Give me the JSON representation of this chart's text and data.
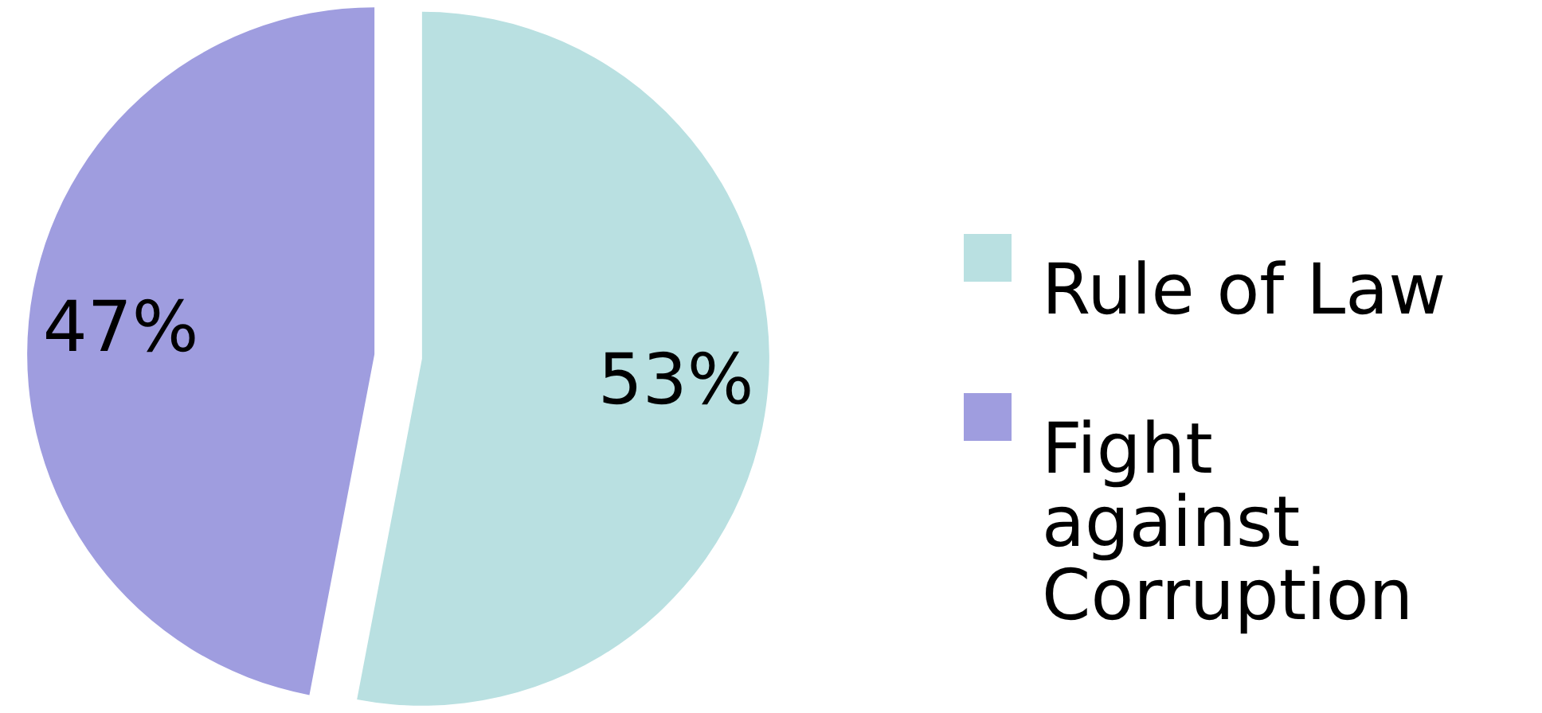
{
  "chart_data": {
    "type": "pie",
    "categories": [
      "Rule of Law",
      "Fight against Corruption"
    ],
    "values": [
      53,
      47
    ],
    "colors": [
      "#b9e0e1",
      "#9f9ddf"
    ],
    "value_labels": [
      "53%",
      "47%"
    ],
    "legend": "right"
  }
}
